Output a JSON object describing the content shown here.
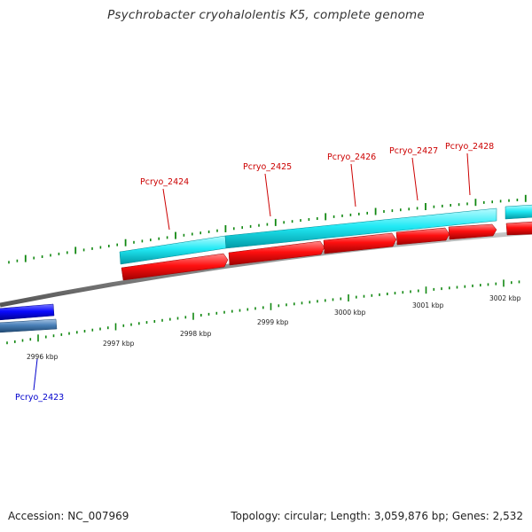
{
  "title": "Psychrobacter cryohalolentis K5, complete genome",
  "footer": {
    "accession": "Accession: NC_007969",
    "summary": "Topology: circular; Length: 3,059,876 bp; Genes: 2,532"
  },
  "colors": {
    "forward_cds": "#ff0000",
    "forward_gene": "#00e5f0",
    "reverse_cds": "#0000ff",
    "reverse_gene": "#4a7fb5",
    "backbone": "#888888",
    "ticks": "#118811",
    "label_forward": "#cc0000",
    "label_reverse": "#0000cc"
  },
  "ticks": [
    {
      "label": "2996 kbp"
    },
    {
      "label": "2997 kbp"
    },
    {
      "label": "2998 kbp"
    },
    {
      "label": "2999 kbp"
    },
    {
      "label": "3000 kbp"
    },
    {
      "label": "3001 kbp"
    },
    {
      "label": "3002 kbp"
    }
  ],
  "genes": [
    {
      "name": "Pcryo_2423",
      "strand": "reverse"
    },
    {
      "name": "Pcryo_2424",
      "strand": "forward"
    },
    {
      "name": "Pcryo_2425",
      "strand": "forward"
    },
    {
      "name": "Pcryo_2426",
      "strand": "forward"
    },
    {
      "name": "Pcryo_2427",
      "strand": "forward"
    },
    {
      "name": "Pcryo_2428",
      "strand": "forward"
    }
  ]
}
